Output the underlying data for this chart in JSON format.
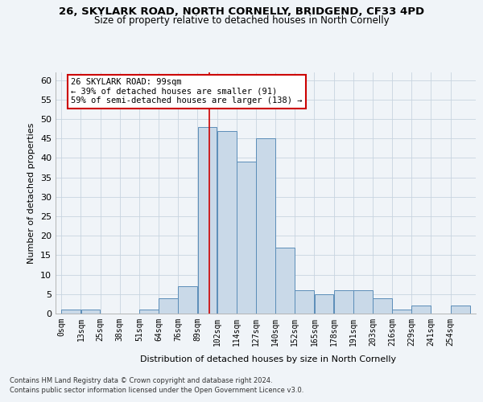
{
  "title": "26, SKYLARK ROAD, NORTH CORNELLY, BRIDGEND, CF33 4PD",
  "subtitle": "Size of property relative to detached houses in North Cornelly",
  "xlabel": "Distribution of detached houses by size in North Cornelly",
  "ylabel": "Number of detached properties",
  "footnote1": "Contains HM Land Registry data © Crown copyright and database right 2024.",
  "footnote2": "Contains public sector information licensed under the Open Government Licence v3.0.",
  "bar_labels": [
    "0sqm",
    "13sqm",
    "25sqm",
    "38sqm",
    "51sqm",
    "64sqm",
    "76sqm",
    "89sqm",
    "102sqm",
    "114sqm",
    "127sqm",
    "140sqm",
    "152sqm",
    "165sqm",
    "178sqm",
    "191sqm",
    "203sqm",
    "216sqm",
    "229sqm",
    "241sqm",
    "254sqm"
  ],
  "bar_values": [
    1,
    1,
    0,
    0,
    1,
    4,
    7,
    48,
    47,
    39,
    45,
    17,
    6,
    5,
    6,
    6,
    4,
    1,
    2,
    0,
    2
  ],
  "bar_color": "#c9d9e8",
  "bar_edge_color": "#5b8db8",
  "annotation_line_color": "#cc0000",
  "annotation_box_text": "26 SKYLARK ROAD: 99sqm\n← 39% of detached houses are smaller (91)\n59% of semi-detached houses are larger (138) →",
  "annotation_box_color": "#cc0000",
  "ylim": [
    0,
    62
  ],
  "yticks": [
    0,
    5,
    10,
    15,
    20,
    25,
    30,
    35,
    40,
    45,
    50,
    55,
    60
  ],
  "bin_width": 13,
  "property_size": 99,
  "background_color": "#f0f4f8",
  "grid_color": "#c8d4e0"
}
